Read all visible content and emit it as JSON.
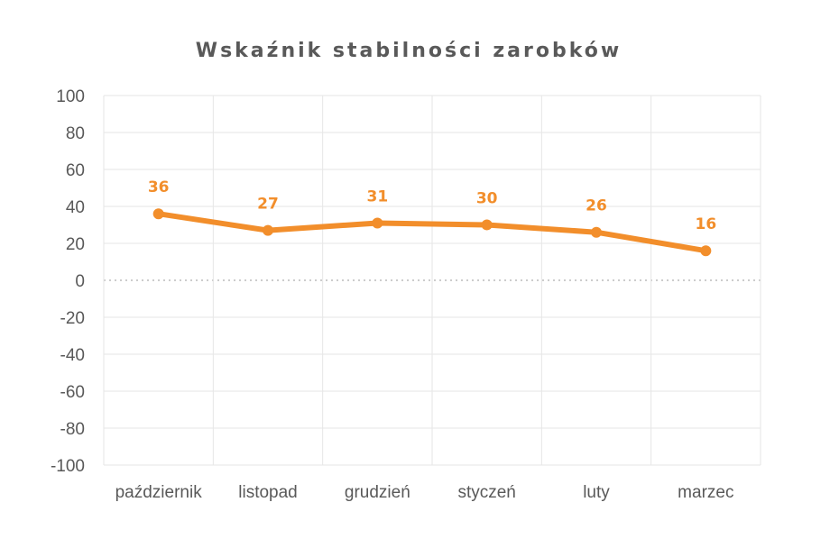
{
  "chart_data": {
    "type": "line",
    "title": "Wskaźnik stabilności zarobków",
    "xlabel": "",
    "ylabel": "",
    "categories": [
      "październik",
      "listopad",
      "grudzień",
      "styczeń",
      "luty",
      "marzec"
    ],
    "series": [
      {
        "values": [
          36,
          27,
          31,
          30,
          26,
          16
        ]
      }
    ],
    "data_labels": [
      "36",
      "27",
      "31",
      "30",
      "26",
      "16"
    ],
    "ylim": [
      -100,
      100
    ],
    "y_ticks": [
      "100",
      "80",
      "60",
      "40",
      "20",
      "0",
      "-20",
      "-40",
      "-60",
      "-80",
      "-100"
    ],
    "grid": true,
    "zero_line": "dotted",
    "legend": "none",
    "colors": {
      "line": "#F28E2B",
      "label": "#F28E2B",
      "grid": "#E6E6E6",
      "zero_line": "#CCCCCC",
      "text": "#595959"
    }
  }
}
